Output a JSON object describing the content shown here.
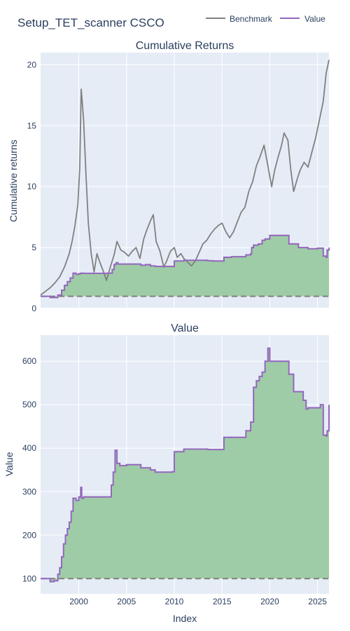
{
  "figure": {
    "title": "Setup_TET_scanner CSCO",
    "legend": [
      {
        "name": "Benchmark",
        "color": "#808080"
      },
      {
        "name": "Value",
        "color": "#9467bd"
      }
    ],
    "colors": {
      "plot_bg": "#e5ecf6",
      "fill": "#9ecca6",
      "benchmark": "#808080",
      "value": "#9467bd",
      "baseline": "#808080"
    }
  },
  "chart_data": [
    {
      "type": "line",
      "title": "Cumulative Returns",
      "xlabel": "",
      "ylabel": "Cumulative returns",
      "xlim": [
        1996.0,
        2026.2
      ],
      "ylim": [
        0,
        21
      ],
      "x_ticks": [
        2000,
        2005,
        2010,
        2015,
        2020,
        2025
      ],
      "y_ticks": [
        0,
        5,
        10,
        15,
        20
      ],
      "y_tick_labels": [
        "0",
        "5",
        "10",
        "15",
        "20"
      ],
      "baseline": 1,
      "grid": true,
      "series": [
        {
          "name": "Benchmark",
          "x": [
            1996.0,
            1996.5,
            1997.0,
            1997.5,
            1998.0,
            1998.5,
            1999.0,
            1999.3,
            1999.6,
            1999.9,
            2000.1,
            2000.25,
            2000.5,
            2000.75,
            2001.0,
            2001.3,
            2001.6,
            2001.9,
            2002.2,
            2002.6,
            2002.9,
            2003.3,
            2003.7,
            2004.0,
            2004.4,
            2004.8,
            2005.2,
            2005.6,
            2006.0,
            2006.4,
            2006.8,
            2007.1,
            2007.5,
            2007.8,
            2008.1,
            2008.5,
            2008.9,
            2009.2,
            2009.6,
            2010.0,
            2010.3,
            2010.7,
            2011.0,
            2011.4,
            2011.8,
            2012.2,
            2012.6,
            2013.0,
            2013.4,
            2013.8,
            2014.2,
            2014.6,
            2015.0,
            2015.4,
            2015.8,
            2016.2,
            2016.6,
            2017.0,
            2017.4,
            2017.8,
            2018.2,
            2018.6,
            2019.0,
            2019.4,
            2019.8,
            2020.2,
            2020.5,
            2020.9,
            2021.2,
            2021.5,
            2021.9,
            2022.2,
            2022.5,
            2022.9,
            2023.2,
            2023.6,
            2024.0,
            2024.4,
            2024.8,
            2025.2,
            2025.6,
            2025.9,
            2026.2
          ],
          "values": [
            1.1,
            1.4,
            1.7,
            2.1,
            2.6,
            3.4,
            4.5,
            5.5,
            6.8,
            8.5,
            11.5,
            18.0,
            15.5,
            11.0,
            7.0,
            4.5,
            3.0,
            4.5,
            3.8,
            3.0,
            2.3,
            3.4,
            4.4,
            5.5,
            4.8,
            4.6,
            4.3,
            4.7,
            5.0,
            4.1,
            5.7,
            6.4,
            7.2,
            7.7,
            5.5,
            4.7,
            3.4,
            3.9,
            4.7,
            5.0,
            4.2,
            4.5,
            4.1,
            3.8,
            3.5,
            3.9,
            4.6,
            5.3,
            5.6,
            6.1,
            6.5,
            6.8,
            7.0,
            6.3,
            5.8,
            6.3,
            7.1,
            7.9,
            8.3,
            9.6,
            10.4,
            11.7,
            12.5,
            13.4,
            11.7,
            10.0,
            11.3,
            12.5,
            13.3,
            14.4,
            13.8,
            11.4,
            9.6,
            10.7,
            11.4,
            12.0,
            11.6,
            12.8,
            14.0,
            15.5,
            17.0,
            19.3,
            20.4
          ]
        },
        {
          "name": "Value",
          "x": [
            1996.0,
            1996.9,
            1997.0,
            1997.5,
            1997.8,
            1998.2,
            1998.5,
            1998.8,
            1999.1,
            1999.4,
            1999.7,
            2000.0,
            2000.2,
            2000.5,
            2001.0,
            2002.0,
            2003.0,
            2003.5,
            2003.7,
            2003.9,
            2004.1,
            2005.0,
            2006.0,
            2006.5,
            2007.0,
            2007.5,
            2008.0,
            2009.0,
            2010.0,
            2011.0,
            2012.0,
            2013.0,
            2013.5,
            2014.0,
            2015.0,
            2015.2,
            2016.0,
            2016.8,
            2017.0,
            2017.5,
            2018.0,
            2018.1,
            2018.3,
            2018.8,
            2019.2,
            2019.5,
            2020.0,
            2021.0,
            2021.7,
            2022.0,
            2022.5,
            2023.0,
            2023.5,
            2024.0,
            2024.5,
            2025.0,
            2025.3,
            2025.6,
            2025.9,
            2026.0,
            2026.2
          ],
          "values": [
            1.0,
            1.0,
            0.9,
            0.9,
            1.1,
            1.5,
            1.9,
            2.2,
            2.5,
            2.9,
            2.8,
            2.85,
            2.9,
            2.88,
            2.88,
            2.88,
            2.9,
            3.2,
            3.6,
            3.75,
            3.65,
            3.65,
            3.65,
            3.55,
            3.6,
            3.5,
            3.45,
            3.45,
            3.9,
            3.95,
            3.95,
            3.95,
            3.92,
            3.9,
            3.9,
            4.2,
            4.25,
            4.25,
            4.25,
            4.4,
            4.5,
            5.0,
            5.2,
            5.3,
            5.6,
            5.7,
            6.0,
            6.0,
            6.0,
            5.3,
            5.3,
            5.0,
            5.0,
            4.9,
            4.9,
            4.95,
            4.95,
            4.3,
            4.2,
            4.8,
            5.0
          ]
        }
      ]
    },
    {
      "type": "area",
      "title": "Value",
      "xlabel": "Index",
      "ylabel": "Value",
      "xlim": [
        1996.0,
        2026.2
      ],
      "ylim": [
        65,
        660
      ],
      "x_ticks": [
        2000,
        2005,
        2010,
        2015,
        2020,
        2025
      ],
      "x_tick_labels": [
        "2000",
        "2005",
        "2010",
        "2015",
        "2020",
        "2025"
      ],
      "y_ticks": [
        100,
        200,
        300,
        400,
        500,
        600
      ],
      "y_tick_labels": [
        "100",
        "200",
        "300",
        "400",
        "500",
        "600"
      ],
      "baseline": 100,
      "grid": true,
      "series": [
        {
          "name": "Value",
          "x": [
            1996.0,
            1996.9,
            1997.0,
            1997.2,
            1997.4,
            1997.8,
            1998.0,
            1998.2,
            1998.4,
            1998.6,
            1998.8,
            1999.0,
            1999.2,
            1999.4,
            1999.7,
            2000.0,
            2000.2,
            2000.3,
            2000.5,
            2001.0,
            2002.0,
            2003.0,
            2003.4,
            2003.6,
            2003.8,
            2004.0,
            2004.3,
            2005.0,
            2006.0,
            2006.5,
            2007.0,
            2007.5,
            2008.0,
            2009.0,
            2009.8,
            2010.0,
            2011.0,
            2012.0,
            2013.0,
            2013.5,
            2014.0,
            2015.0,
            2015.2,
            2016.0,
            2016.8,
            2017.0,
            2017.5,
            2018.0,
            2018.1,
            2018.3,
            2018.6,
            2018.9,
            2019.2,
            2019.5,
            2019.8,
            2020.0,
            2021.0,
            2021.7,
            2022.0,
            2022.5,
            2023.0,
            2023.5,
            2023.8,
            2024.0,
            2024.5,
            2025.0,
            2025.3,
            2025.6,
            2025.9,
            2026.0,
            2026.2
          ],
          "values": [
            100,
            100,
            93,
            93,
            95,
            110,
            125,
            150,
            180,
            200,
            215,
            230,
            255,
            285,
            280,
            288,
            310,
            285,
            288,
            288,
            288,
            288,
            315,
            345,
            395,
            365,
            360,
            362,
            362,
            355,
            355,
            350,
            345,
            345,
            346,
            392,
            398,
            398,
            398,
            397,
            397,
            397,
            425,
            425,
            425,
            425,
            440,
            460,
            460,
            540,
            555,
            565,
            575,
            600,
            630,
            600,
            600,
            600,
            570,
            530,
            530,
            510,
            490,
            493,
            493,
            493,
            500,
            430,
            428,
            440,
            500
          ]
        }
      ]
    }
  ]
}
